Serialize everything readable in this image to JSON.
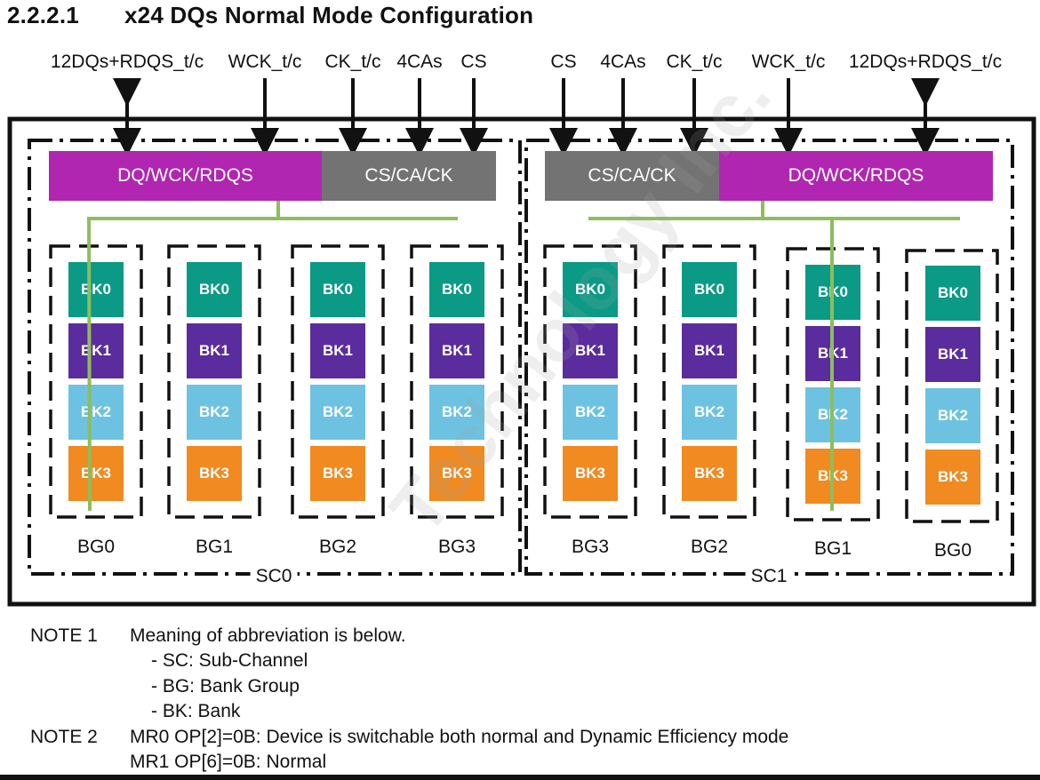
{
  "title": {
    "number": "2.2.2.1",
    "text": "x24 DQs Normal Mode Configuration"
  },
  "signals_left": [
    "12DQs+RDQS_t/c",
    "WCK_t/c",
    "CK_t/c",
    "4CAs",
    "CS"
  ],
  "signals_right": [
    "CS",
    "4CAs",
    "CK_t/c",
    "WCK_t/c",
    "12DQs+RDQS_t/c"
  ],
  "sc0": {
    "label": "SC0",
    "dq_bar": "DQ/WCK/RDQS",
    "cs_bar": "CS/CA/CK",
    "groups": [
      {
        "label": "BG0",
        "banks": [
          "BK0",
          "BK1",
          "BK2",
          "BK3"
        ]
      },
      {
        "label": "BG1",
        "banks": [
          "BK0",
          "BK1",
          "BK2",
          "BK3"
        ]
      },
      {
        "label": "BG2",
        "banks": [
          "BK0",
          "BK1",
          "BK2",
          "BK3"
        ]
      },
      {
        "label": "BG3",
        "banks": [
          "BK0",
          "BK1",
          "BK2",
          "BK3"
        ]
      }
    ]
  },
  "sc1": {
    "label": "SC1",
    "dq_bar": "DQ/WCK/RDQS",
    "cs_bar": "CS/CA/CK",
    "groups": [
      {
        "label": "BG3",
        "banks": [
          "BK0",
          "BK1",
          "BK2",
          "BK3"
        ]
      },
      {
        "label": "BG2",
        "banks": [
          "BK0",
          "BK1",
          "BK2",
          "BK3"
        ]
      },
      {
        "label": "BG1",
        "banks": [
          "BK0",
          "BK1",
          "BK2",
          "BK3"
        ]
      },
      {
        "label": "BG0",
        "banks": [
          "BK0",
          "BK1",
          "BK2",
          "BK3"
        ]
      }
    ]
  },
  "notes": {
    "note1_label": "NOTE 1",
    "note1_text": "Meaning of abbreviation is below.",
    "note1_items": [
      "- SC: Sub-Channel",
      "- BG: Bank Group",
      "- BK: Bank"
    ],
    "note2_label": "NOTE 2",
    "note2_line1": "MR0 OP[2]=0B: Device is switchable both normal and Dynamic Efficiency mode",
    "note2_line2": "MR1 OP[6]=0B: Normal"
  },
  "watermark": "Technology Inc.",
  "colors": {
    "dq_bar": "#b026b1",
    "cs_bar": "#737373",
    "bk0": "#0a9a86",
    "bk1": "#5b2c9e",
    "bk2": "#6ec2e1",
    "bk3": "#f08a21",
    "bus": "#8dbe5a"
  }
}
